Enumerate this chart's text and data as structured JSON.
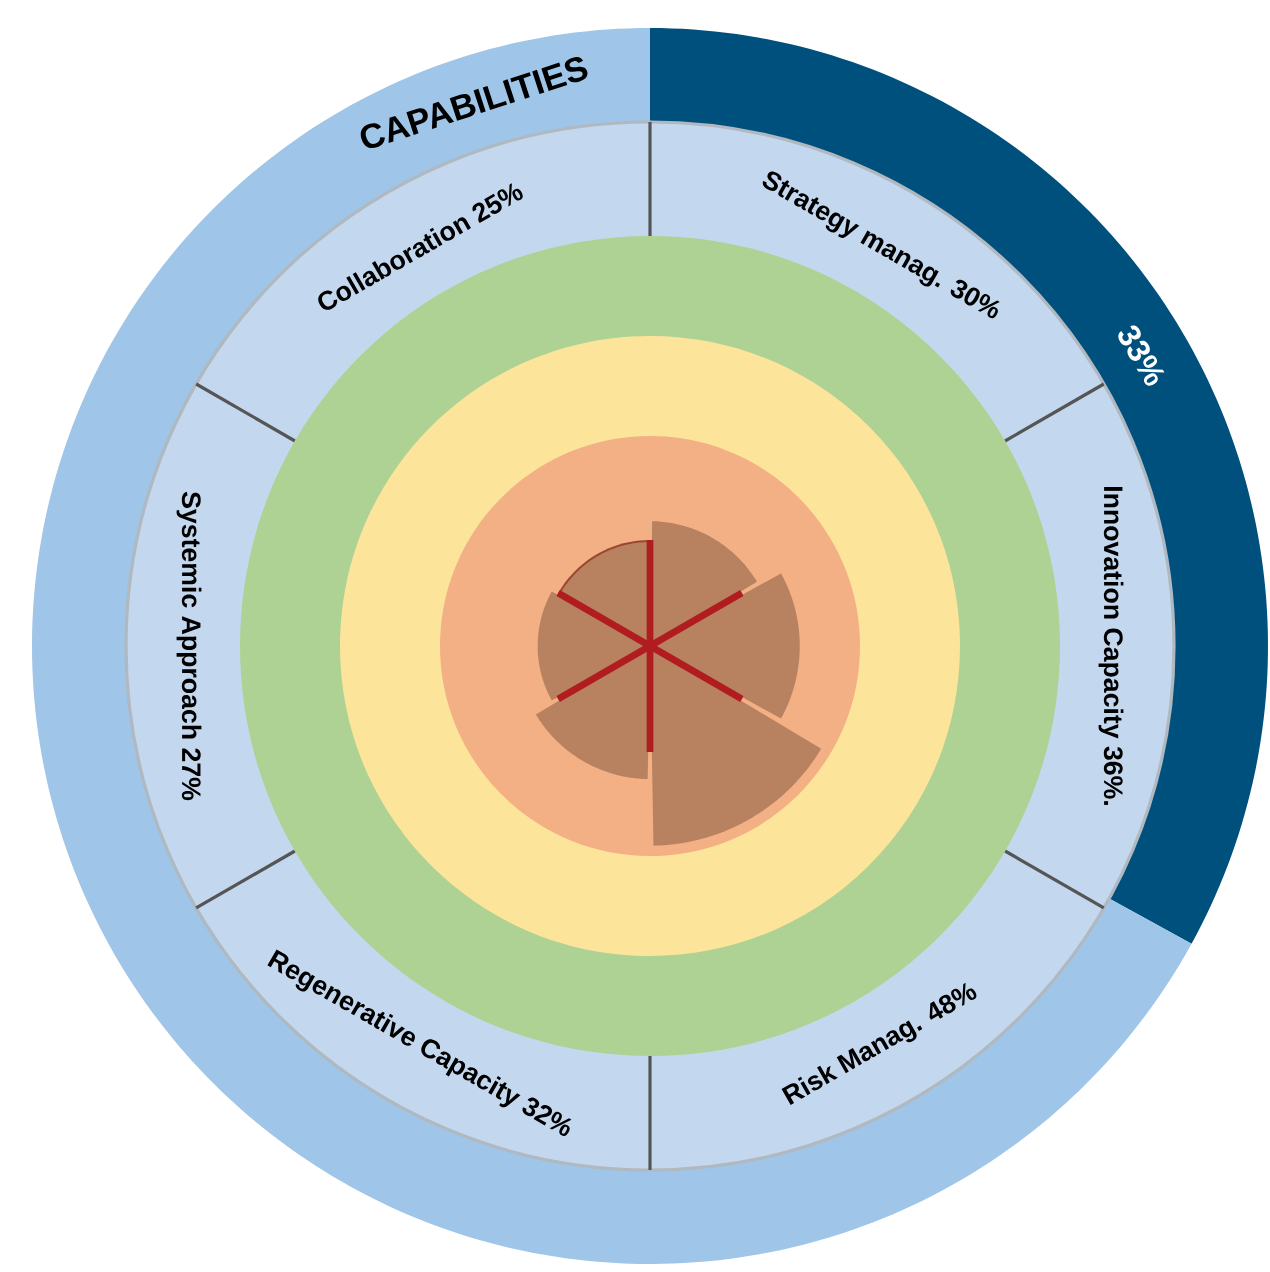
{
  "chart_data": [
    {
      "type": "other",
      "categories": [
        "Strategy manag.",
        "Innovation Capacity",
        "Risk Manag.",
        "Regenerative Capacity",
        "Systemic Approach",
        "Collaboration"
      ],
      "values": [
        30,
        36,
        48,
        32,
        27,
        25
      ],
      "value_labels": [
        "30%",
        "36%.",
        "48%",
        "32%",
        "27%",
        "25%"
      ],
      "color": "#b8815f"
    },
    {
      "type": "donut",
      "title": "CAPABILITIES",
      "categories": [
        null,
        null
      ],
      "values": [
        33,
        67
      ],
      "colors": [
        "#00507e",
        "#9fc5e8"
      ],
      "value_labels": [
        "33%",
        null
      ]
    }
  ]
}
